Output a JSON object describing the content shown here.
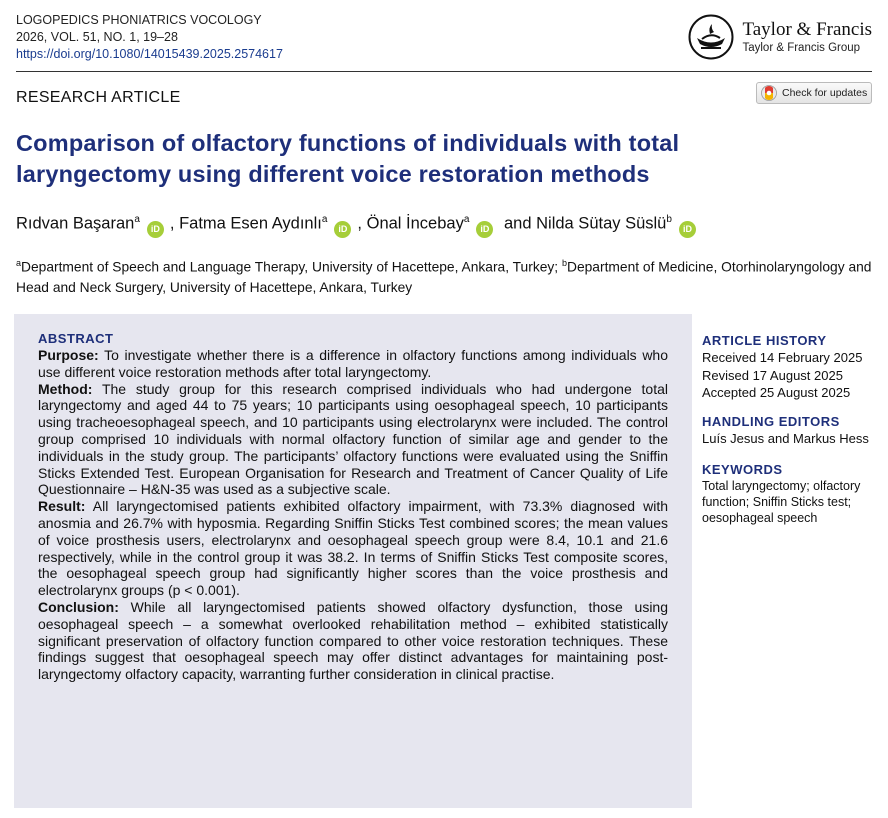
{
  "journal": {
    "name": "LOGOPEDICS PHONIATRICS VOCOLOGY",
    "volume": "2026, VOL. 51, NO. 1, 19–28",
    "doi": "https://doi.org/10.1080/14015439.2025.2574617"
  },
  "publisher": {
    "brand": "Taylor & Francis",
    "group": "Taylor & Francis Group"
  },
  "article_type": "RESEARCH ARTICLE",
  "check_updates_label": "Check for updates",
  "title": "Comparison of olfactory functions of individuals with total laryngectomy using different voice restoration methods",
  "authors": [
    {
      "name": "Rıdvan Başaran",
      "aff": "a"
    },
    {
      "name": "Fatma Esen Aydınlı",
      "aff": "a"
    },
    {
      "name": "Önal İncebay",
      "aff": "a"
    },
    {
      "name": "Nilda Sütay Süslü",
      "aff": "b"
    }
  ],
  "author_sep": {
    "comma": ",",
    "and": "and"
  },
  "orcid_label": "iD",
  "affiliations": {
    "a_mark": "a",
    "a": "Department of Speech and Language Therapy, University of Hacettepe, Ankara, Turkey;",
    "b_mark": "b",
    "b": "Department of Medicine, Otorhinolaryngology and Head and Neck Surgery, University of Hacettepe, Ankara, Turkey"
  },
  "abstract": {
    "heading": "ABSTRACT",
    "purpose_label": "Purpose:",
    "purpose": "To investigate whether there is a difference in olfactory functions among individuals who use different voice restoration methods after total laryngectomy.",
    "method_label": "Method:",
    "method": "The study group for this research comprised individuals who had undergone total laryngectomy and aged 44 to 75 years; 10 participants using oesophageal speech, 10 participants using tracheoesophageal speech, and 10 participants using electrolarynx were included. The control group comprised 10 individuals with normal olfactory function of similar age and gender to the individuals in the study group. The participants’ olfactory functions were evaluated using the Sniffin Sticks Extended Test. European Organisation for Research and Treatment of Cancer Quality of Life Questionnaire – H&N-35 was used as a subjective scale.",
    "result_label": "Result:",
    "result": "All laryngectomised patients exhibited olfactory impairment, with 73.3% diagnosed with anosmia and 26.7% with hyposmia. Regarding Sniffin Sticks Test combined scores; the mean values of voice prosthesis users, electrolarynx and oesophageal speech group were 8.4, 10.1 and 21.6 respectively, while in the control group it was 38.2. In terms of Sniffin Sticks Test composite scores, the oesophageal speech group had significantly higher scores than the voice prosthesis and electrolarynx groups (p < 0.001).",
    "conclusion_label": "Conclusion:",
    "conclusion": "While all laryngectomised patients showed olfactory dysfunction, those using oesophageal speech – a somewhat overlooked rehabilitation method – exhibited statistically significant preservation of olfactory function compared to other voice restoration techniques. These findings suggest that oesophageal speech may offer distinct advantages for maintaining post-laryngectomy olfactory capacity, warranting further consideration in clinical practise."
  },
  "article_history": {
    "heading": "ARTICLE HISTORY",
    "received": "Received 14 February 2025",
    "revised": "Revised 17 August 2025",
    "accepted": "Accepted 25 August 2025"
  },
  "handling_editors": {
    "heading": "HANDLING EDITORS",
    "names": "Luís Jesus and Markus Hess"
  },
  "keywords": {
    "heading": "KEYWORDS",
    "list": "Total laryngectomy; olfactory function; Sniffin Sticks test; oesophageal speech"
  },
  "colors": {
    "title": "#1e2f7a",
    "abstract_bg": "#e6e6ef",
    "doi_link": "#1a3c8f",
    "orcid": "#a6ce39"
  }
}
